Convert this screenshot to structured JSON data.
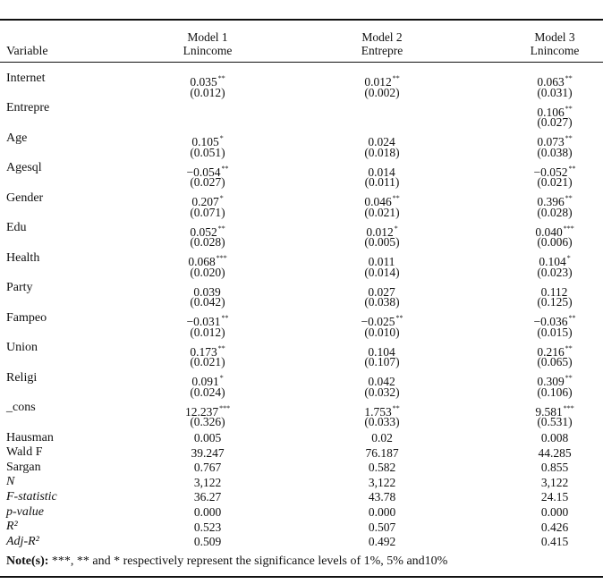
{
  "header": {
    "variable": "Variable",
    "model1": {
      "name": "Model 1",
      "dv": "Lnincome"
    },
    "model2": {
      "name": "Model 2",
      "dv": "Entrepre"
    },
    "model3": {
      "name": "Model 3",
      "dv": "Lnincome"
    }
  },
  "rows": [
    {
      "label": "Internet",
      "m1": [
        "0.035",
        "**"
      ],
      "m1se": "(0.012)",
      "m2": [
        "0.012",
        "**"
      ],
      "m2se": "(0.002)",
      "m3": [
        "0.063",
        "**"
      ],
      "m3se": "(0.031)"
    },
    {
      "label": "Entrepre",
      "m1": [
        "",
        ""
      ],
      "m1se": "",
      "m2": [
        "",
        ""
      ],
      "m2se": "",
      "m3": [
        "0.106",
        "**"
      ],
      "m3se": "(0.027)"
    },
    {
      "label": "Age",
      "m1": [
        "0.105",
        "*"
      ],
      "m1se": "(0.051)",
      "m2": [
        "0.024",
        ""
      ],
      "m2se": "(0.018)",
      "m3": [
        "0.073",
        "**"
      ],
      "m3se": "(0.038)"
    },
    {
      "label": "Agesql",
      "m1": [
        "−0.054",
        "**"
      ],
      "m1se": "(0.027)",
      "m2": [
        "0.014",
        ""
      ],
      "m2se": "(0.011)",
      "m3": [
        "−0.052",
        "**"
      ],
      "m3se": "(0.021)"
    },
    {
      "label": "Gender",
      "m1": [
        "0.207",
        "*"
      ],
      "m1se": "(0.071)",
      "m2": [
        "0.046",
        "**"
      ],
      "m2se": "(0.021)",
      "m3": [
        "0.396",
        "**"
      ],
      "m3se": "(0.028)"
    },
    {
      "label": "Edu",
      "m1": [
        "0.052",
        "**"
      ],
      "m1se": "(0.028)",
      "m2": [
        "0.012",
        "*"
      ],
      "m2se": "(0.005)",
      "m3": [
        "0.040",
        "***"
      ],
      "m3se": "(0.006)"
    },
    {
      "label": "Health",
      "m1": [
        "0.068",
        "***"
      ],
      "m1se": "(0.020)",
      "m2": [
        "0.011",
        ""
      ],
      "m2se": "(0.014)",
      "m3": [
        "0.104",
        "*"
      ],
      "m3se": "(0.023)"
    },
    {
      "label": "Party",
      "m1": [
        "0.039",
        ""
      ],
      "m1se": "(0.042)",
      "m2": [
        "0.027",
        ""
      ],
      "m2se": "(0.038)",
      "m3": [
        "0.112",
        ""
      ],
      "m3se": "(0.125)"
    },
    {
      "label": "Fampeo",
      "m1": [
        "−0.031",
        "**"
      ],
      "m1se": "(0.012)",
      "m2": [
        "−0.025",
        "**"
      ],
      "m2se": "(0.010)",
      "m3": [
        "−0.036",
        "**"
      ],
      "m3se": "(0.015)"
    },
    {
      "label": "Union",
      "m1": [
        "0.173",
        "**"
      ],
      "m1se": "(0.021)",
      "m2": [
        "0.104",
        ""
      ],
      "m2se": "(0.107)",
      "m3": [
        "0.216",
        "**"
      ],
      "m3se": "(0.065)"
    },
    {
      "label": "Religi",
      "m1": [
        "0.091",
        "*"
      ],
      "m1se": "(0.024)",
      "m2": [
        "0.042",
        ""
      ],
      "m2se": "(0.032)",
      "m3": [
        "0.309",
        "**"
      ],
      "m3se": "(0.106)"
    },
    {
      "label": "_cons",
      "m1": [
        "12.237",
        "***"
      ],
      "m1se": "(0.326)",
      "m2": [
        "1.753",
        "**"
      ],
      "m2se": "(0.033)",
      "m3": [
        "9.581",
        "***"
      ],
      "m3se": "(0.531)"
    }
  ],
  "stats": [
    {
      "label": "Hausman",
      "italic": false,
      "m1": "0.005",
      "m2": "0.02",
      "m3": "0.008"
    },
    {
      "label": "Wald F",
      "italic": false,
      "m1": "39.247",
      "m2": "76.187",
      "m3": "44.285"
    },
    {
      "label": "Sargan",
      "italic": false,
      "m1": "0.767",
      "m2": "0.582",
      "m3": "0.855"
    },
    {
      "label": "N",
      "italic": true,
      "m1": "3,122",
      "m2": "3,122",
      "m3": "3,122"
    },
    {
      "label": "F-statistic",
      "italic": true,
      "m1": "36.27",
      "m2": "43.78",
      "m3": "24.15"
    },
    {
      "label": "p-value",
      "italic": true,
      "m1": "0.000",
      "m2": "0.000",
      "m3": "0.000"
    },
    {
      "label": "R²",
      "italic": true,
      "m1": "0.523",
      "m2": "0.507",
      "m3": "0.426"
    },
    {
      "label": "Adj-R²",
      "italic": true,
      "m1": "0.509",
      "m2": "0.492",
      "m3": "0.415"
    }
  ],
  "note": {
    "prefix": "Note(s):",
    "text": " ***, ** and * respectively represent the significance levels of 1%, 5% and10%"
  }
}
